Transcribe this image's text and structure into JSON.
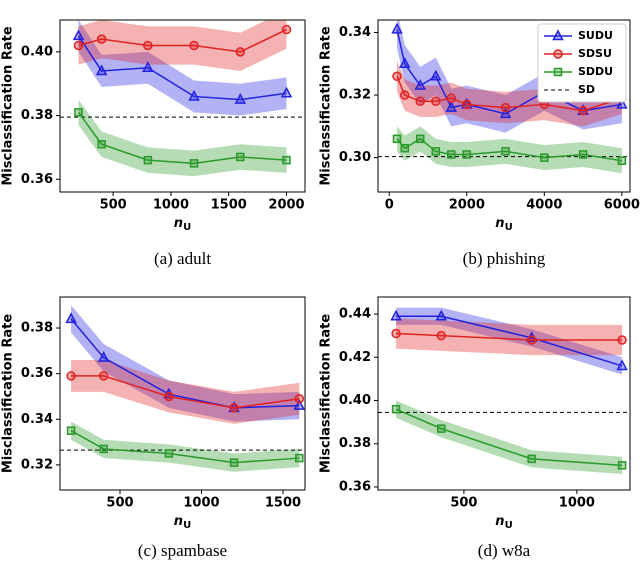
{
  "charts": [
    {
      "type": "line",
      "caption": "(a) adult",
      "ylabel": "Misclassification Rate",
      "xlabel": {
        "text": "n",
        "sub": "U"
      },
      "x": [
        200,
        400,
        800,
        1200,
        1600,
        2000
      ],
      "xlim": [
        40,
        2160
      ],
      "xticks": [
        500,
        1000,
        1500,
        2000
      ],
      "ylim": [
        0.356,
        0.41
      ],
      "yticks": [
        0.36,
        0.38,
        {
          "value": 0.4,
          "label": "0.40"
        }
      ],
      "series": [
        {
          "color": "#2222e0",
          "marker": "triangle",
          "error": 0.005,
          "values": [
            0.405,
            0.394,
            0.395,
            0.386,
            0.385,
            0.387
          ]
        },
        {
          "color": "#e02222",
          "marker": "circle",
          "error": 0.006,
          "values": [
            0.402,
            0.404,
            0.402,
            0.402,
            0.4,
            0.407
          ]
        },
        {
          "color": "#2a9a2a",
          "marker": "square",
          "error": 0.004,
          "values": [
            0.381,
            0.371,
            0.366,
            0.365,
            0.367,
            0.366
          ]
        }
      ],
      "reference": {
        "value": 0.3795
      }
    },
    {
      "type": "line",
      "caption": "(b) phishing",
      "ylabel": "Misclassification Rate",
      "xlabel": {
        "text": "n",
        "sub": "U"
      },
      "x": [
        200,
        400,
        800,
        1200,
        1600,
        2000,
        3000,
        4000,
        5000,
        6000
      ],
      "xlim": [
        -290,
        6210
      ],
      "xticks": [
        0,
        2000,
        4000,
        6000
      ],
      "ylim": [
        0.289,
        0.344
      ],
      "yticks": [
        {
          "value": 0.3,
          "label": "0.30"
        },
        0.32,
        0.34
      ],
      "legend": "upper right",
      "series": [
        {
          "name": "SUDU",
          "color": "#2222e0",
          "marker": "triangle",
          "error": 0.006,
          "values": [
            0.341,
            0.33,
            0.323,
            0.326,
            0.316,
            0.317,
            0.314,
            0.321,
            0.315,
            0.317
          ]
        },
        {
          "name": "SDSU",
          "color": "#e02222",
          "marker": "circle",
          "error": 0.005,
          "values": [
            0.326,
            0.32,
            0.318,
            0.318,
            0.319,
            0.317,
            0.316,
            0.317,
            0.315,
            0.319
          ]
        },
        {
          "name": "SDDU",
          "color": "#2a9a2a",
          "marker": "square",
          "error": 0.004,
          "values": [
            0.306,
            0.303,
            0.306,
            0.302,
            0.301,
            0.301,
            0.302,
            0.3,
            0.301,
            0.299
          ]
        }
      ],
      "reference": {
        "name": "SD",
        "value": 0.3003
      }
    },
    {
      "type": "line",
      "caption": "(c) spambase",
      "ylabel": "Misclassification Rate",
      "xlabel": {
        "text": "n",
        "sub": "U"
      },
      "x": [
        200,
        400,
        800,
        1200,
        1600
      ],
      "xlim": [
        132,
        1635
      ],
      "xticks": [
        500,
        1000,
        1500
      ],
      "ylim": [
        0.309,
        0.3936
      ],
      "yticks": [
        0.32,
        0.34,
        0.36,
        0.38
      ],
      "series": [
        {
          "color": "#2222e0",
          "marker": "triangle",
          "error": 0.006,
          "values": [
            0.384,
            0.367,
            0.351,
            0.345,
            0.346
          ]
        },
        {
          "color": "#e02222",
          "marker": "circle",
          "error": 0.007,
          "values": [
            0.359,
            0.359,
            0.35,
            0.345,
            0.349
          ]
        },
        {
          "color": "#2a9a2a",
          "marker": "square",
          "error": 0.004,
          "values": [
            0.335,
            0.327,
            0.325,
            0.321,
            0.323
          ]
        }
      ],
      "reference": {
        "value": 0.3265
      }
    },
    {
      "type": "line",
      "caption": "(d) w8a",
      "ylabel": "Misclassification Rate",
      "xlabel": {
        "text": "n",
        "sub": "U"
      },
      "x": [
        200,
        400,
        800,
        1200
      ],
      "xlim": [
        120,
        1235
      ],
      "xticks": [
        500,
        1000
      ],
      "ylim": [
        0.3586,
        0.4479
      ],
      "yticks": [
        0.36,
        0.38,
        {
          "value": 0.4,
          "label": "0.40"
        },
        0.42,
        0.44
      ],
      "series": [
        {
          "color": "#2222e0",
          "marker": "triangle",
          "error": 0.004,
          "values": [
            0.439,
            0.439,
            0.429,
            0.416
          ]
        },
        {
          "color": "#e02222",
          "marker": "circle",
          "error": 0.007,
          "values": [
            0.431,
            0.43,
            0.428,
            0.428
          ]
        },
        {
          "color": "#2a9a2a",
          "marker": "square",
          "error": 0.004,
          "values": [
            0.396,
            0.387,
            0.373,
            0.37
          ]
        }
      ],
      "reference": {
        "value": 0.3945
      }
    }
  ]
}
